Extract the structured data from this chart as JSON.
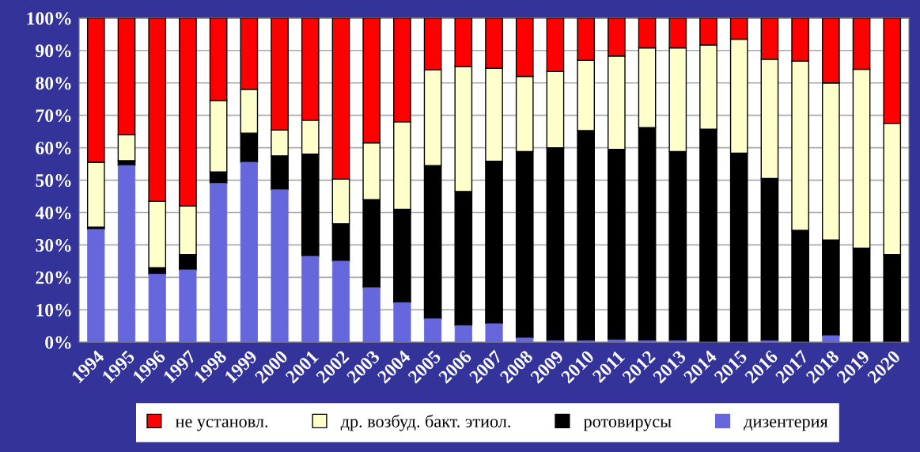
{
  "chart_data": {
    "type": "bar",
    "stacked": true,
    "categories": [
      "1994",
      "1995",
      "1996",
      "1997",
      "1998",
      "1999",
      "2000",
      "2001",
      "2002",
      "2003",
      "2004",
      "2005",
      "2006",
      "2007",
      "2008",
      "2009",
      "2010",
      "2011",
      "2012",
      "2013",
      "2014",
      "2015",
      "2016",
      "2017",
      "2018",
      "2019",
      "2020"
    ],
    "series": [
      {
        "name": "дизентерия",
        "color": "#6666dd",
        "values": [
          34.8,
          54.5,
          21,
          22.3,
          49,
          55.5,
          47,
          26.5,
          25,
          16.8,
          12.2,
          7.2,
          5.1,
          5.7,
          1.3,
          0.4,
          0.4,
          0.7,
          0.4,
          0.4,
          0,
          0,
          0.4,
          0,
          2,
          0,
          0
        ]
      },
      {
        "name": "ротовирусы",
        "color": "#000000",
        "values": [
          0.7,
          1.5,
          2,
          4.7,
          3.5,
          9,
          10.5,
          31.5,
          11.5,
          27.2,
          28.8,
          47.3,
          41.4,
          50.1,
          57.5,
          59.6,
          64.9,
          58.8,
          65.8,
          58.4,
          65.7,
          58.3,
          50.1,
          34.5,
          29.5,
          29,
          27
        ]
      },
      {
        "name": "др. возбуд. бакт. этиол.",
        "color": "#ffffcc",
        "values": [
          20,
          8,
          20.5,
          15,
          22,
          13.5,
          8,
          10.5,
          13.8,
          17.5,
          27,
          29.5,
          38.5,
          28.7,
          23.2,
          23.5,
          21.7,
          28.8,
          24.6,
          32,
          26,
          35.2,
          36.8,
          52.2,
          48.5,
          55.2,
          40.5
        ]
      },
      {
        "name": "не установл.",
        "color": "#ff0000",
        "values": [
          44.5,
          36,
          56.5,
          58,
          25.5,
          22,
          34.5,
          31.5,
          49.7,
          38.5,
          32,
          16,
          15,
          15.5,
          18,
          16.5,
          13,
          11.7,
          9.2,
          9.2,
          8.3,
          6.5,
          12.7,
          13.3,
          20,
          15.8,
          32.5
        ]
      }
    ],
    "ylim": [
      0,
      100
    ],
    "yticks": [
      {
        "value": 0,
        "label": "0%"
      },
      {
        "value": 10,
        "label": "10%"
      },
      {
        "value": 20,
        "label": "20%"
      },
      {
        "value": 30,
        "label": "30%"
      },
      {
        "value": 40,
        "label": "40%"
      },
      {
        "value": 50,
        "label": "50%"
      },
      {
        "value": 60,
        "label": "60%"
      },
      {
        "value": 70,
        "label": "70%"
      },
      {
        "value": 80,
        "label": "80%"
      },
      {
        "value": 90,
        "label": "90%"
      },
      {
        "value": 100,
        "label": "100%"
      }
    ],
    "grid": "y",
    "legend": "bottom"
  }
}
